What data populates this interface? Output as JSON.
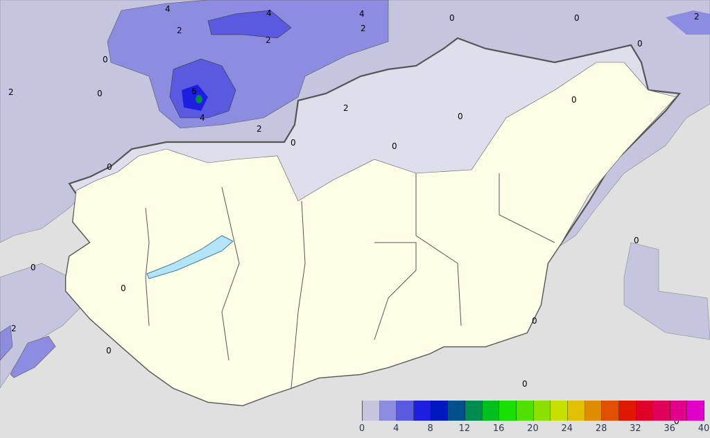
{
  "map": {
    "colors": {
      "background": "#e0e0e0",
      "precip_0_2": "#c5c5e0",
      "precip_trace": "#dedeec",
      "no_precip": "#ffffe8",
      "lake": "#b4e4f8"
    },
    "contour_labels": [
      "4",
      "4",
      "4",
      "2",
      "2",
      "2",
      "2",
      "6",
      "4",
      "2",
      "0",
      "0",
      "0",
      "2",
      "0",
      "0",
      "0",
      "0",
      "0",
      "0",
      "0",
      "0",
      "0",
      "0",
      "2",
      "0",
      "0",
      "0",
      "2",
      "0"
    ]
  },
  "legend": {
    "colors": [
      "#c5c5e0",
      "#8c8ce0",
      "#5a5ae0",
      "#1e1ee0",
      "#0018c0",
      "#00508c",
      "#008c50",
      "#00c020",
      "#18e000",
      "#50e000",
      "#8ce000",
      "#c8e000",
      "#e0c000",
      "#e08c00",
      "#e05000",
      "#e01800",
      "#e00028",
      "#e0005a",
      "#e0008c",
      "#e000c8"
    ],
    "ticks": [
      "0",
      "4",
      "8",
      "12",
      "16",
      "20",
      "24",
      "28",
      "32",
      "36",
      "40"
    ]
  }
}
